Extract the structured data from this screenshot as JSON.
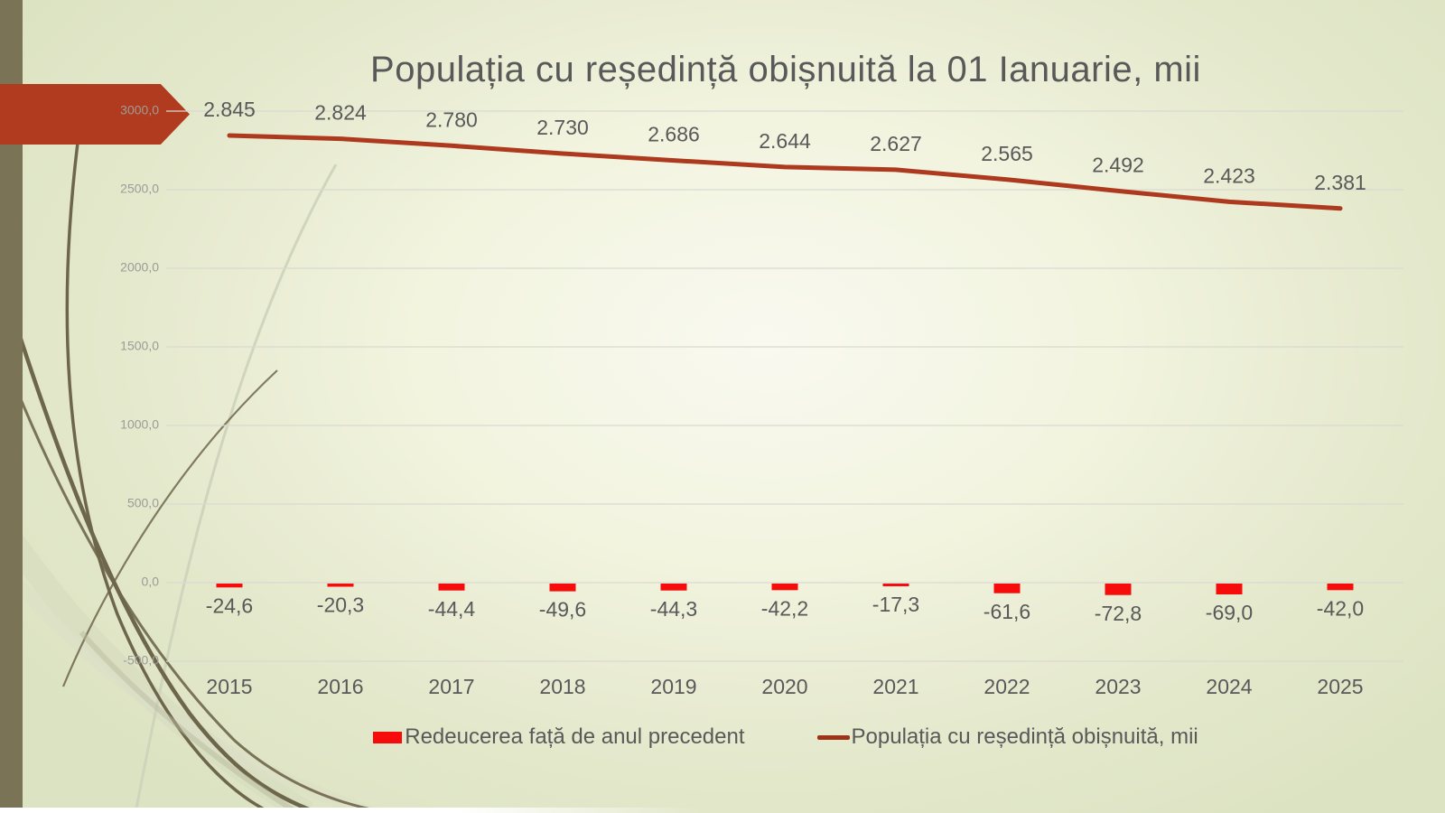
{
  "slide": {
    "title": "Populația cu reședință obișnuită la 01 Ianuarie, mii"
  },
  "legend": {
    "items": [
      {
        "label": "Redeucerea față de anul precedent",
        "swatch": "bar",
        "color": "#f60d0b"
      },
      {
        "label": "Populația cu reședință obișnuită, mii",
        "swatch": "line",
        "color": "#9c3418"
      }
    ]
  },
  "colors": {
    "accent_arrow": "#b13b1e",
    "left_bar": "#7b7355",
    "line_series": "#ad3a1f",
    "bar_series": "#f60d0b",
    "text": "#595959",
    "axis_text": "#9c9c98",
    "gridline": "#d9d9d2"
  },
  "chart_data": {
    "type": "bar",
    "subtype": "combo-bar-line",
    "title": "Populația cu reședință obișnuită la 01 Ianuarie, mii",
    "categories": [
      "2015",
      "2016",
      "2017",
      "2018",
      "2019",
      "2020",
      "2021",
      "2022",
      "2023",
      "2024",
      "2025"
    ],
    "series": [
      {
        "name": "Redeucerea față de anul precedent",
        "type": "bar",
        "color": "#f60d0b",
        "values": [
          -24.6,
          -20.3,
          -44.4,
          -49.6,
          -44.3,
          -42.2,
          -17.3,
          -61.6,
          -72.8,
          -69.0,
          -42.0
        ],
        "labels": [
          "-24,6",
          "-20,3",
          "-44,4",
          "-49,6",
          "-44,3",
          "-42,2",
          "-17,3",
          "-61,6",
          "-72,8",
          "-69,0",
          "-42,0"
        ]
      },
      {
        "name": "Populația cu reședință obișnuită, mii",
        "type": "line",
        "color": "#ad3a1f",
        "values": [
          2845,
          2824,
          2780,
          2730,
          2686,
          2644,
          2627,
          2565,
          2492,
          2423,
          2381
        ],
        "labels": [
          "2.845",
          "2.824",
          "2.780",
          "2.730",
          "2.686",
          "2.644",
          "2.627",
          "2.565",
          "2.492",
          "2.423",
          "2.381"
        ]
      }
    ],
    "y_axis": {
      "range": [
        -500,
        3000
      ],
      "grid": true,
      "ticks": [
        {
          "value": 3000,
          "label": "3000,0"
        },
        {
          "value": 2500,
          "label": "2500,0"
        },
        {
          "value": 2000,
          "label": "2000,0"
        },
        {
          "value": 1500,
          "label": "1500,0"
        },
        {
          "value": 1000,
          "label": "1000,0"
        },
        {
          "value": 500,
          "label": "500,0"
        },
        {
          "value": 0,
          "label": "0,0"
        },
        {
          "value": -500,
          "label": "-500,0"
        }
      ]
    },
    "xlabel": "",
    "ylabel": "",
    "legend_position": "bottom"
  }
}
